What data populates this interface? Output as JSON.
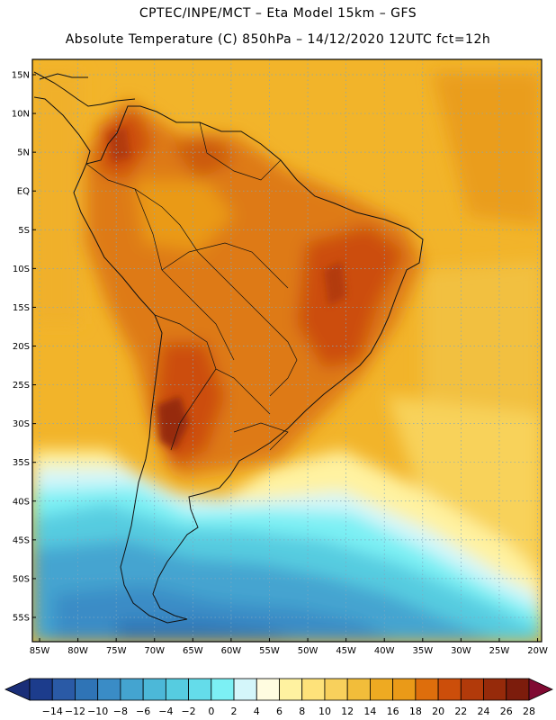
{
  "header": {
    "line1": "CPTEC/INPE/MCT –  Eta Model 15km – GFS",
    "line2": "Absolute Temperature (C) 850hPa – 14/12/2020 12UTC fct=12h"
  },
  "map": {
    "lat_labels": [
      "15N",
      "10N",
      "5N",
      "EQ",
      "5S",
      "10S",
      "15S",
      "20S",
      "25S",
      "30S",
      "35S",
      "40S",
      "45S",
      "50S",
      "55S"
    ],
    "lon_labels": [
      "85W",
      "80W",
      "75W",
      "70W",
      "65W",
      "60W",
      "55W",
      "50W",
      "45W",
      "40W",
      "35W",
      "30W",
      "25W",
      "20W"
    ]
  },
  "colorbar": {
    "labels": [
      "-14",
      "-12",
      "-10",
      "-8",
      "-6",
      "-4",
      "-2",
      "0",
      "2",
      "4",
      "6",
      "8",
      "10",
      "12",
      "14",
      "16",
      "18",
      "20",
      "22",
      "24",
      "26",
      "28"
    ],
    "colors": [
      "#1c3c8c",
      "#2a5aa6",
      "#2f74b6",
      "#3a8cc6",
      "#44a4d0",
      "#4cb8d8",
      "#56cce0",
      "#64dcea",
      "#7cf0f4",
      "#d4f6fa",
      "#fffce0",
      "#fff2a0",
      "#fee27a",
      "#f8d05c",
      "#f2bd3a",
      "#eeaa22",
      "#ea9a18",
      "#de6e0c",
      "#cc4e0a",
      "#b23a0a",
      "#962a0a",
      "#7c1c0c"
    ],
    "under_color": "#1a2e78",
    "over_color": "#800a32"
  }
}
